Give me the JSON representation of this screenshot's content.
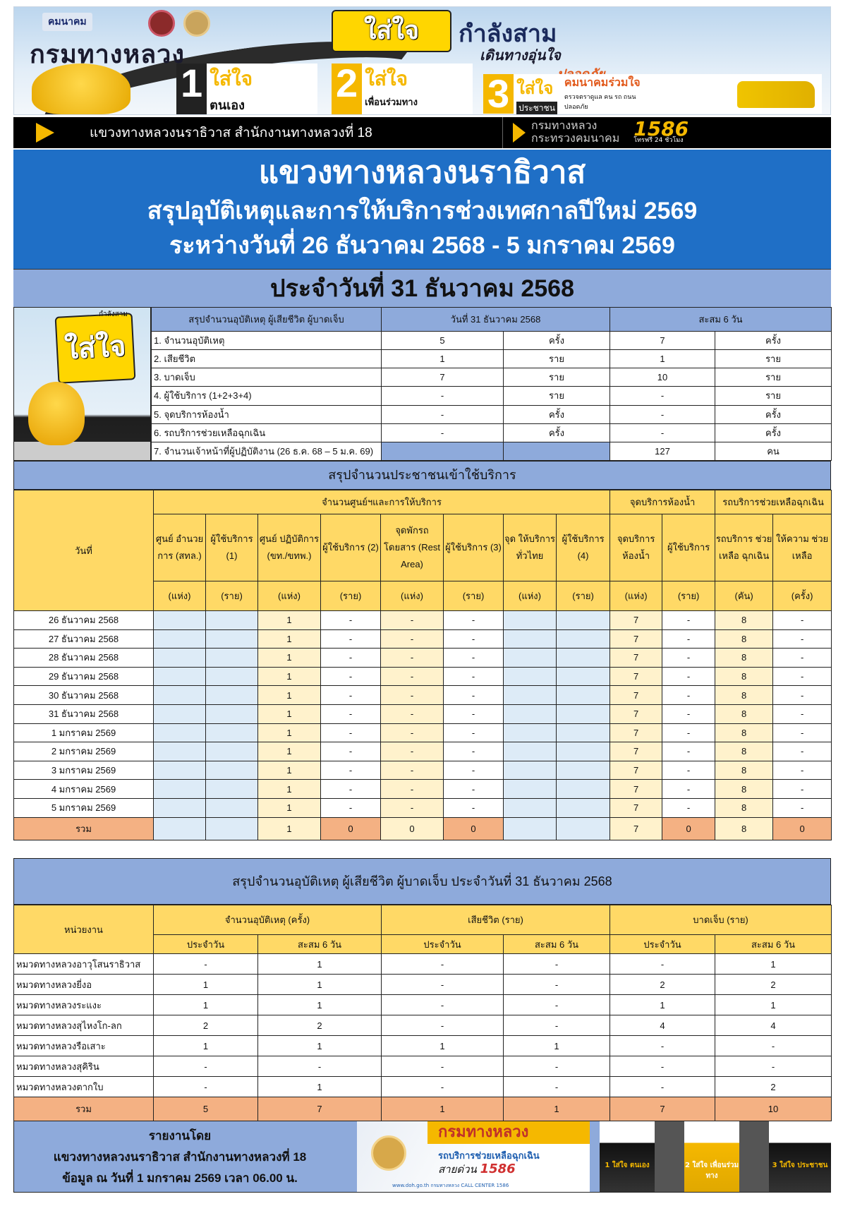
{
  "banner": {
    "ministry_logo_text": "คมนาคม",
    "department_logo": "กรมทางหลวง",
    "slogan_bubble": "ใส่ใจ",
    "slogan_title": "กำลังสาม",
    "slogan_sub1": "เดินทางอุ่นใจ",
    "slogan_sub2": "ปลอดภัย",
    "panels": [
      {
        "num": "1",
        "title": "ใส่ใจ",
        "sub": "ตนเอง"
      },
      {
        "num": "2",
        "title": "ใส่ใจ",
        "sub": "เพื่อนร่วมทาง"
      },
      {
        "num": "3",
        "title": "ใส่ใจ",
        "sub": "ประชาชน",
        "extra": "คมนาคมร่วมใจ",
        "extra2": "ตรวจตราดูแล คน รถ ถนน ปลอดภัย"
      }
    ]
  },
  "blackbar": {
    "office": "แขวงทางหลวงนราธิวาส  สำนักงานทางหลวงที่ 18",
    "dept": "กรมทางหลวง",
    "ministry": "กระทรวงคมนาคม",
    "hotline": "1586",
    "hotline_sub": "โทรฟรี 24 ชั่วโมง"
  },
  "title": {
    "line1": "แขวงทางหลวงนราธิวาส",
    "line2": "สรุปอุบัติเหตุและการให้บริการช่วงเทศกาลปีใหม่  2569",
    "line3": "ระหว่างวันที่  26 ธันวาคม 2568 -  5 มกราคม 2569"
  },
  "date_band": "ประจำวันที่ 31  ธันวาคม 2568",
  "mascot": {
    "bubble": "ใส่ใจ",
    "tag": "กำลังสาม"
  },
  "summary": {
    "headers": [
      "สรุปจำนวนอุบัติเหตุ ผู้เสียชีวิต ผู้บาดเจ็บ",
      "วันที่ 31 ธันวาคม 2568",
      "สะสม 6 วัน"
    ],
    "rows": [
      {
        "label": "1. จำนวนอุบัติเหตุ",
        "day": "5",
        "day_unit": "ครั้ง",
        "cum": "7",
        "cum_unit": "ครั้ง"
      },
      {
        "label": "2. เสียชีวิต",
        "day": "1",
        "day_unit": "ราย",
        "cum": "1",
        "cum_unit": "ราย"
      },
      {
        "label": "3. บาดเจ็บ",
        "day": "7",
        "day_unit": "ราย",
        "cum": "10",
        "cum_unit": "ราย"
      },
      {
        "label": "4. ผู้ใช้บริการ (1+2+3+4)",
        "day": "-",
        "day_unit": "ราย",
        "cum": "-",
        "cum_unit": "ราย"
      },
      {
        "label": "5. จุดบริการห้องน้ำ",
        "day": "-",
        "day_unit": "ครั้ง",
        "cum": "-",
        "cum_unit": "ครั้ง"
      },
      {
        "label": "6. รถบริการช่วยเหลือฉุกเฉิน",
        "day": "-",
        "day_unit": "ครั้ง",
        "cum": "-",
        "cum_unit": "ครั้ง"
      },
      {
        "label": "7. จำนวนเจ้าหน้าที่ผู้ปฏิบัติงาน (26 ธ.ค. 68 – 5 ม.ค. 69)",
        "day": "",
        "day_unit": "",
        "cum": "127",
        "cum_unit": "คน"
      }
    ]
  },
  "service": {
    "title": "สรุปจำนวนประชาชนเข้าใช้บริการ",
    "date_header": "วันที่",
    "groups": [
      "จำนวนศูนย์ฯและการให้บริการ",
      "จุดบริการห้องน้ำ",
      "รถบริการช่วยเหลือฉุกเฉิน"
    ],
    "columns": [
      {
        "label": "ศูนย์ อำนวยการ (สทล.)",
        "unit": "(แห่ง)"
      },
      {
        "label": "ผู้ใช้บริการ (1)",
        "unit": "(ราย)"
      },
      {
        "label": "ศูนย์ ปฏิบัติการ (ขท./ขทพ.)",
        "unit": "(แห่ง)"
      },
      {
        "label": "ผู้ใช้บริการ (2)",
        "unit": "(ราย)"
      },
      {
        "label": "จุดพักรถ โดยสาร (Rest Area)",
        "unit": "(แห่ง)"
      },
      {
        "label": "ผู้ใช้บริการ (3)",
        "unit": "(ราย)"
      },
      {
        "label": "จุด ให้บริการ ทั่วไทย",
        "unit": "(แห่ง)"
      },
      {
        "label": "ผู้ใช้บริการ (4)",
        "unit": "(ราย)"
      },
      {
        "label": "จุดบริการ ห้องน้ำ",
        "unit": "(แห่ง)"
      },
      {
        "label": "ผู้ใช้บริการ",
        "unit": "(ราย)"
      },
      {
        "label": "รถบริการ ช่วยเหลือ ฉุกเฉิน",
        "unit": "(คัน)"
      },
      {
        "label": "ให้ความ ช่วยเหลือ",
        "unit": "(ครั้ง)"
      }
    ],
    "rows": [
      {
        "date": "26 ธันวาคม 2568",
        "values": [
          "",
          "",
          "1",
          "-",
          "-",
          "-",
          "",
          "",
          "7",
          "-",
          "8",
          "-"
        ]
      },
      {
        "date": "27 ธันวาคม 2568",
        "values": [
          "",
          "",
          "1",
          "-",
          "-",
          "-",
          "",
          "",
          "7",
          "-",
          "8",
          "-"
        ]
      },
      {
        "date": "28 ธันวาคม 2568",
        "values": [
          "",
          "",
          "1",
          "-",
          "-",
          "-",
          "",
          "",
          "7",
          "-",
          "8",
          "-"
        ]
      },
      {
        "date": "29 ธันวาคม 2568",
        "values": [
          "",
          "",
          "1",
          "-",
          "-",
          "-",
          "",
          "",
          "7",
          "-",
          "8",
          "-"
        ]
      },
      {
        "date": "30 ธันวาคม 2568",
        "values": [
          "",
          "",
          "1",
          "-",
          "-",
          "-",
          "",
          "",
          "7",
          "-",
          "8",
          "-"
        ]
      },
      {
        "date": "31 ธันวาคม 2568",
        "values": [
          "",
          "",
          "1",
          "-",
          "-",
          "-",
          "",
          "",
          "7",
          "-",
          "8",
          "-"
        ]
      },
      {
        "date": "1 มกราคม 2569",
        "values": [
          "",
          "",
          "1",
          "-",
          "-",
          "-",
          "",
          "",
          "7",
          "-",
          "8",
          "-"
        ]
      },
      {
        "date": "2 มกราคม 2569",
        "values": [
          "",
          "",
          "1",
          "-",
          "-",
          "-",
          "",
          "",
          "7",
          "-",
          "8",
          "-"
        ]
      },
      {
        "date": "3 มกราคม 2569",
        "values": [
          "",
          "",
          "1",
          "-",
          "-",
          "-",
          "",
          "",
          "7",
          "-",
          "8",
          "-"
        ]
      },
      {
        "date": "4 มกราคม 2569",
        "values": [
          "",
          "",
          "1",
          "-",
          "-",
          "-",
          "",
          "",
          "7",
          "-",
          "8",
          "-"
        ]
      },
      {
        "date": "5 มกราคม 2569",
        "values": [
          "",
          "",
          "1",
          "-",
          "-",
          "-",
          "",
          "",
          "7",
          "-",
          "8",
          "-"
        ]
      }
    ],
    "total": {
      "label": "รวม",
      "values": [
        "",
        "",
        "1",
        "0",
        "0",
        "0",
        "",
        "",
        "7",
        "0",
        "8",
        "0"
      ]
    }
  },
  "accidents": {
    "title": "สรุปจำนวนอุบัติเหตุ ผู้เสียชีวิต ผู้บาดเจ็บ ประจำวันที่ 31 ธันวาคม 2568",
    "unit_header": "หน่วยงาน",
    "groups": [
      "จำนวนอุบัติเหตุ (ครั้ง)",
      "เสียชีวิต (ราย)",
      "บาดเจ็บ (ราย)"
    ],
    "subheaders": [
      "ประจำวัน",
      "สะสม 6 วัน",
      "ประจำวัน",
      "สะสม 6 วัน",
      "ประจำวัน",
      "สะสม 6 วัน"
    ],
    "rows": [
      {
        "unit": "หมวดทางหลวงอาวุโสนราธิวาส",
        "values": [
          "-",
          "1",
          "-",
          "-",
          "-",
          "1"
        ]
      },
      {
        "unit": "หมวดทางหลวงยี่งอ",
        "values": [
          "1",
          "1",
          "-",
          "-",
          "2",
          "2"
        ]
      },
      {
        "unit": "หมวดทางหลวงระแงะ",
        "values": [
          "1",
          "1",
          "-",
          "-",
          "1",
          "1"
        ]
      },
      {
        "unit": "หมวดทางหลวงสุไหงโก-ลก",
        "values": [
          "2",
          "2",
          "-",
          "-",
          "4",
          "4"
        ]
      },
      {
        "unit": "หมวดทางหลวงรือเสาะ",
        "values": [
          "1",
          "1",
          "1",
          "1",
          "-",
          "-"
        ]
      },
      {
        "unit": "หมวดทางหลวงสุคิริน",
        "values": [
          "-",
          "-",
          "-",
          "-",
          "-",
          "-"
        ]
      },
      {
        "unit": "หมวดทางหลวงตากใบ",
        "values": [
          "-",
          "1",
          "-",
          "-",
          "-",
          "2"
        ]
      }
    ],
    "total": {
      "label": "รวม",
      "values": [
        "5",
        "7",
        "1",
        "1",
        "7",
        "10"
      ]
    }
  },
  "footer": {
    "reported_by": "รายงานโดย",
    "office": "แขวงทางหลวงนราธิวาส สำนักงานทางหลวงที่ 18",
    "as_of": "ข้อมูล ณ วันที่ 1 มกราคม 2569 เวลา 06.00 น.",
    "ad_dept": "กรมทางหลวง",
    "ad_service": "รถบริการช่วยเหลือฉุกเฉิน",
    "ad_hotline_label": "สายด่วน",
    "ad_hotline": "1586",
    "ad_links": "www.doh.go.th   กรมทางหลวง   CALL CENTER 1586",
    "posters": [
      "1 ใส่ใจ ตนเอง",
      "2 ใส่ใจ เพื่อนร่วมทาง",
      "3 ใส่ใจ ประชาชน"
    ]
  },
  "colors": {
    "title_blue": "#1f6fc6",
    "band_blue": "#8eaadb",
    "header_yellow": "#ffd966",
    "light_yellow": "#fff2cc",
    "light_blue": "#ddebf7",
    "total_orange": "#f4b183"
  }
}
